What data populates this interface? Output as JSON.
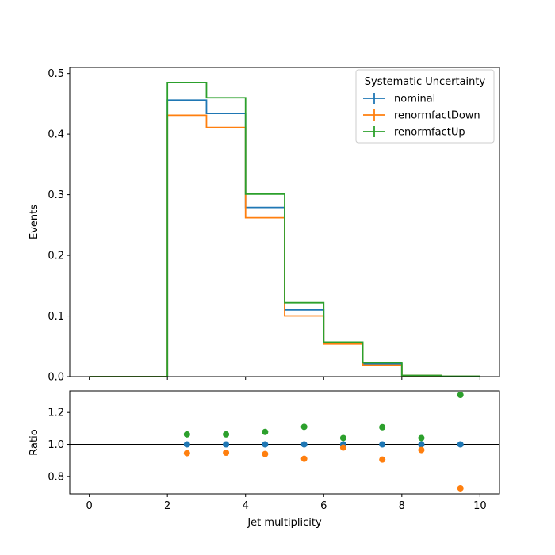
{
  "chart_data": [
    {
      "type": "step-histogram",
      "ylabel": "Events",
      "xlim": [
        -0.5,
        10.5
      ],
      "ylim": [
        0,
        0.51
      ],
      "yticks": [
        0.0,
        0.1,
        0.2,
        0.3,
        0.4,
        0.5
      ],
      "ytick_labels": [
        "0.0",
        "0.1",
        "0.2",
        "0.3",
        "0.4",
        "0.5"
      ],
      "xticks": [
        0,
        2,
        4,
        6,
        8,
        10
      ],
      "bin_edges": [
        0,
        1,
        2,
        3,
        4,
        5,
        6,
        7,
        8,
        9,
        10
      ],
      "legend": {
        "title": "Systematic Uncertainty",
        "position": "top-right"
      },
      "series": [
        {
          "name": "nominal",
          "color": "#1f77b4",
          "values": [
            0.0,
            0.0,
            0.456,
            0.434,
            0.279,
            0.11,
            0.055,
            0.021,
            0.002,
            0.0005
          ]
        },
        {
          "name": "renormfactDown",
          "color": "#ff7f0e",
          "values": [
            0.0,
            0.0,
            0.431,
            0.411,
            0.262,
            0.1,
            0.054,
            0.019,
            0.002,
            0.0004
          ]
        },
        {
          "name": "renormfactUp",
          "color": "#2ca02c",
          "values": [
            0.0,
            0.0,
            0.485,
            0.46,
            0.301,
            0.122,
            0.057,
            0.023,
            0.002,
            0.0006
          ]
        }
      ]
    },
    {
      "type": "scatter",
      "xlabel": "Jet multiplicity",
      "ylabel": "Ratio",
      "xlim": [
        -0.5,
        10.5
      ],
      "ylim": [
        0.69,
        1.335
      ],
      "yticks": [
        0.8,
        1.0,
        1.2
      ],
      "ytick_labels": [
        "0.8",
        "1.0",
        "1.2"
      ],
      "xticks": [
        0,
        2,
        4,
        6,
        8,
        10
      ],
      "xtick_labels": [
        "0",
        "2",
        "4",
        "6",
        "8",
        "10"
      ],
      "reference_line": 1.0,
      "x": [
        2.5,
        3.5,
        4.5,
        5.5,
        6.5,
        7.5,
        8.5,
        9.5
      ],
      "series": [
        {
          "name": "nominal",
          "color": "#1f77b4",
          "values": [
            1.0,
            1.0,
            1.0,
            1.0,
            1.0,
            1.0,
            1.0,
            1.0
          ]
        },
        {
          "name": "renormfactDown",
          "color": "#ff7f0e",
          "values": [
            0.945,
            0.948,
            0.94,
            0.91,
            0.98,
            0.905,
            0.965,
            0.725
          ]
        },
        {
          "name": "renormfactUp",
          "color": "#2ca02c",
          "values": [
            1.063,
            1.063,
            1.078,
            1.11,
            1.04,
            1.108,
            1.04,
            1.31
          ]
        }
      ]
    }
  ]
}
